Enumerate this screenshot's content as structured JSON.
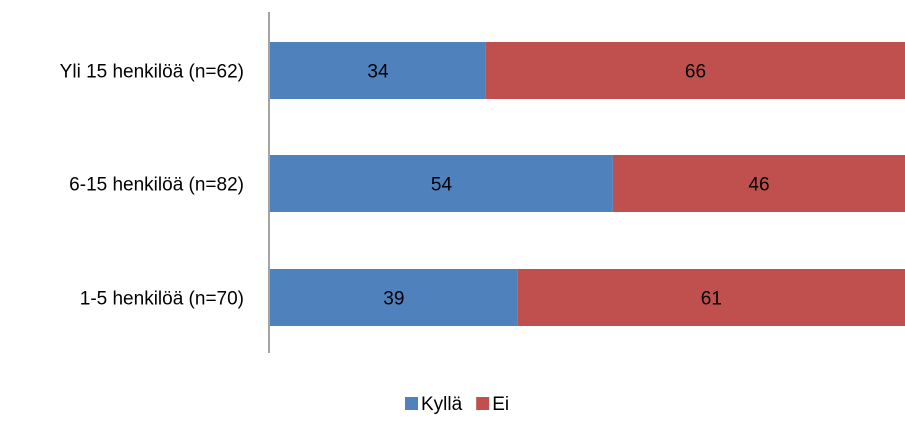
{
  "chart_data": {
    "type": "bar",
    "orientation": "horizontal",
    "stacked": true,
    "percent_stacked": true,
    "categories": [
      "Yli 15 henkilöä (n=62)",
      "6-15 henkilöä (n=82)",
      "1-5 henkilöä (n=70)"
    ],
    "series": [
      {
        "name": "Kyllä",
        "color": "#4F81BD",
        "values": [
          34,
          54,
          39
        ]
      },
      {
        "name": "Ei",
        "color": "#C0504D",
        "values": [
          66,
          46,
          61
        ]
      }
    ],
    "title": "",
    "xlabel": "",
    "ylabel": "",
    "xlim": [
      0,
      100
    ],
    "grid": false,
    "legend_position": "bottom"
  }
}
